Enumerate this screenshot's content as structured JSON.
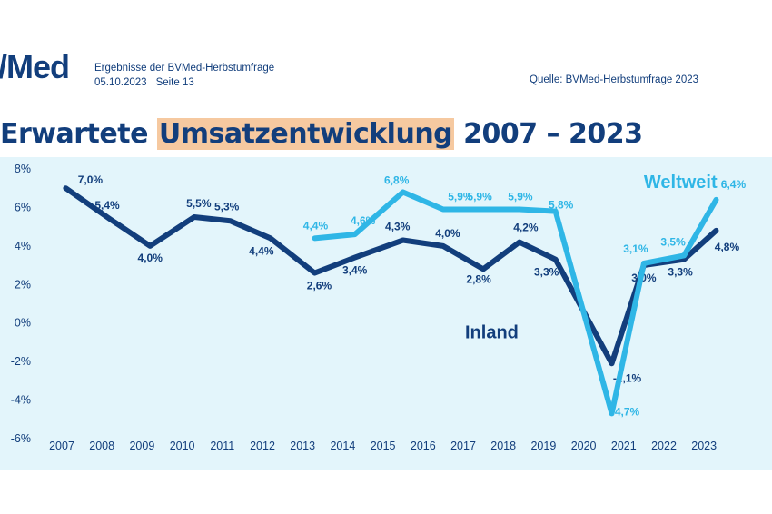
{
  "header": {
    "logo_text": "/Med",
    "subtitle": "Ergebnisse der BVMed-Herbstumfrage",
    "date": "05.10.2023",
    "page": "Seite 13",
    "source": "Quelle: BVMed-Herbstumfrage 2023"
  },
  "title": {
    "part1": "Erwartete ",
    "highlight": "Umsatzentwicklung",
    "part2": " 2007 – 2023"
  },
  "colors": {
    "inland": "#123e7c",
    "weltweit": "#2fb6e6",
    "plot_background": "#e3f5fb",
    "title_highlight": "#f6c9a0"
  },
  "chart_data": {
    "type": "line",
    "title": "Erwartete Umsatzentwicklung 2007 – 2023",
    "xlabel": "",
    "ylabel": "",
    "ylim": [
      -6,
      8
    ],
    "y_ticks": [
      "8%",
      "6%",
      "4%",
      "2%",
      "0%",
      "-2%",
      "-4%",
      "-6%"
    ],
    "x_ticks": [
      "2007",
      "2008",
      "2009",
      "2010",
      "2011",
      "2012",
      "2013",
      "2014",
      "2015",
      "2016",
      "2017",
      "2018",
      "2019",
      "2020",
      "2021",
      "2022",
      "2023"
    ],
    "grid": false,
    "series": [
      {
        "name": "Inland",
        "color": "#123e7c",
        "points": [
          {
            "x": 2007.1,
            "y": 7.0,
            "label": "7,0%"
          },
          {
            "x": 2008.2,
            "y": 5.4,
            "label": "5,4%"
          },
          {
            "x": 2009.2,
            "y": 4.0,
            "label": "4,0%"
          },
          {
            "x": 2010.3,
            "y": 5.5,
            "label": "5,5%"
          },
          {
            "x": 2011.2,
            "y": 5.3,
            "label": "5,3%"
          },
          {
            "x": 2012.2,
            "y": 4.4,
            "label": "4,4%"
          },
          {
            "x": 2013.3,
            "y": 2.6,
            "label": "2,6%"
          },
          {
            "x": 2014.3,
            "y": 3.4,
            "label": "3,4%"
          },
          {
            "x": 2015.5,
            "y": 4.3,
            "label": "4,3%"
          },
          {
            "x": 2016.5,
            "y": 4.0,
            "label": "4,0%"
          },
          {
            "x": 2017.5,
            "y": 2.8,
            "label": "2,8%"
          },
          {
            "x": 2018.4,
            "y": 4.2,
            "label": "4,2%"
          },
          {
            "x": 2019.3,
            "y": 3.3,
            "label": "3,3%"
          },
          {
            "x": 2020.7,
            "y": -2.1,
            "label": "-2,1%"
          },
          {
            "x": 2021.5,
            "y": 3.0,
            "label": "3,0%"
          },
          {
            "x": 2022.5,
            "y": 3.3,
            "label": "3,3%"
          },
          {
            "x": 2023.3,
            "y": 4.8,
            "label": "4,8%"
          }
        ],
        "series_label": "Inland"
      },
      {
        "name": "Weltweit",
        "color": "#2fb6e6",
        "points": [
          {
            "x": 2013.3,
            "y": 4.4,
            "label": "4,4%"
          },
          {
            "x": 2014.3,
            "y": 4.6,
            "label": "4,6%"
          },
          {
            "x": 2015.5,
            "y": 6.8,
            "label": "6,8%"
          },
          {
            "x": 2016.5,
            "y": 5.9,
            "label": "5,9%"
          },
          {
            "x": 2017.5,
            "y": 5.9,
            "label": "5,9%"
          },
          {
            "x": 2018.4,
            "y": 5.9,
            "label": "5,9%"
          },
          {
            "x": 2019.3,
            "y": 5.8,
            "label": "5,8%"
          },
          {
            "x": 2020.7,
            "y": -4.7,
            "label": "-4,7%"
          },
          {
            "x": 2021.5,
            "y": 3.1,
            "label": "3,1%"
          },
          {
            "x": 2022.5,
            "y": 3.5,
            "label": "3,5%"
          },
          {
            "x": 2023.3,
            "y": 6.4,
            "label": "6,4%"
          }
        ],
        "series_label": "Weltweit"
      }
    ]
  }
}
